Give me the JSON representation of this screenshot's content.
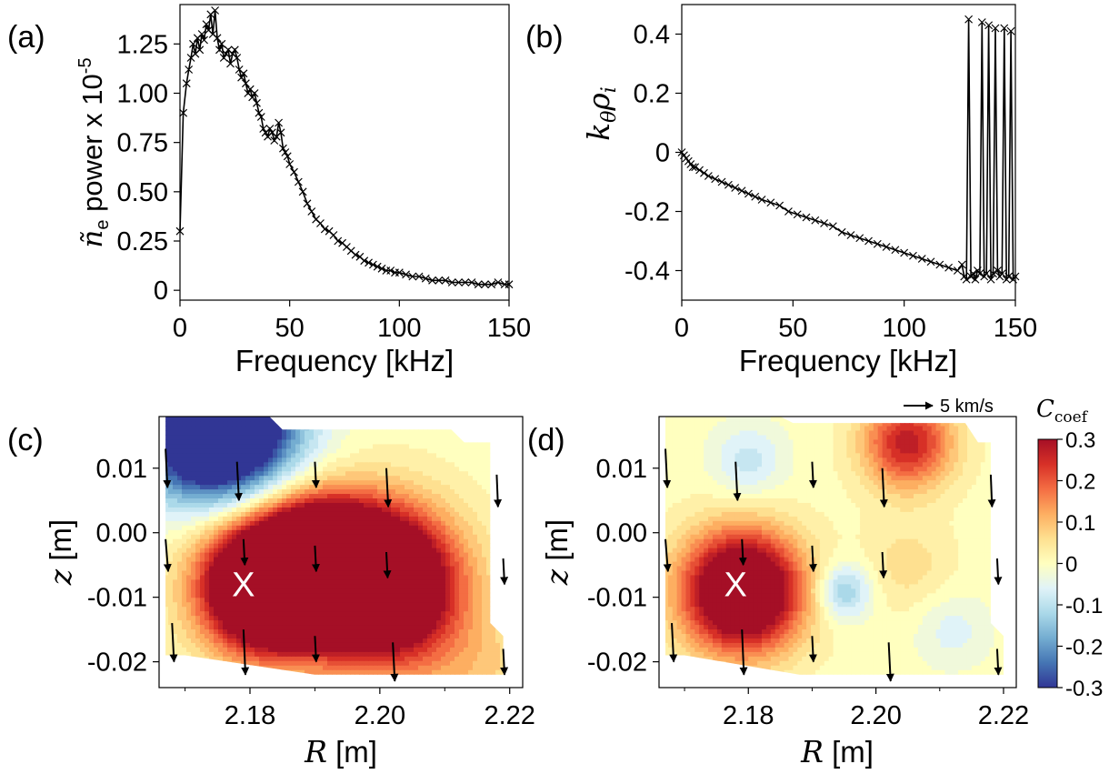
{
  "panels": {
    "a": {
      "label": "(a)"
    },
    "b": {
      "label": "(b)"
    },
    "c": {
      "label": "(c)"
    },
    "d": {
      "label": "(d)"
    }
  },
  "annotations": {
    "arrow_scale_label": "5 km/s",
    "x_marker": "X",
    "colorbar_label": "C",
    "colorbar_label_sub": "coef"
  },
  "chart_data": [
    {
      "id": "a",
      "type": "line",
      "title": "",
      "xlabel": "Frequency [kHz]",
      "ylabel_parts": [
        "ñ",
        "e",
        " power x 10",
        "-5"
      ],
      "xlim": [
        0,
        150
      ],
      "ylim": [
        -0.05,
        1.45
      ],
      "xticks": [
        0,
        50,
        100,
        150
      ],
      "yticks": [
        0,
        0.25,
        0.5,
        0.75,
        1.0,
        1.25
      ],
      "ytick_labels": [
        "0",
        "0.25",
        "0.50",
        "0.75",
        "1.00",
        "1.25"
      ],
      "marker": "x",
      "x": [
        0,
        1.5,
        3,
        4,
        5,
        6,
        7,
        8,
        9,
        10,
        11,
        12,
        13,
        14,
        15,
        16,
        17,
        18,
        19,
        20,
        21,
        22,
        23,
        24,
        25,
        26,
        27,
        28,
        29,
        30,
        31,
        32,
        33,
        34,
        35,
        36,
        37,
        38,
        39,
        40,
        41,
        42,
        43,
        44,
        45,
        46,
        47,
        48,
        49,
        50,
        52,
        54,
        56,
        58,
        60,
        62,
        64,
        66,
        68,
        70,
        72,
        74,
        76,
        78,
        80,
        82,
        84,
        86,
        88,
        90,
        92,
        94,
        96,
        98,
        100,
        103,
        106,
        109,
        112,
        115,
        118,
        121,
        124,
        127,
        130,
        133,
        136,
        139,
        142,
        145,
        148,
        150
      ],
      "y": [
        0.3,
        0.9,
        1.05,
        1.12,
        1.18,
        1.25,
        1.2,
        1.28,
        1.22,
        1.3,
        1.27,
        1.35,
        1.32,
        1.4,
        1.3,
        1.42,
        1.28,
        1.22,
        1.25,
        1.18,
        1.2,
        1.22,
        1.15,
        1.2,
        1.22,
        1.18,
        1.12,
        1.08,
        1.1,
        1.05,
        1.0,
        1.02,
        0.98,
        1.0,
        0.95,
        0.9,
        0.88,
        0.82,
        0.8,
        0.78,
        0.82,
        0.8,
        0.76,
        0.78,
        0.85,
        0.8,
        0.72,
        0.7,
        0.68,
        0.64,
        0.6,
        0.55,
        0.5,
        0.44,
        0.4,
        0.36,
        0.34,
        0.31,
        0.3,
        0.28,
        0.25,
        0.24,
        0.22,
        0.2,
        0.18,
        0.17,
        0.15,
        0.14,
        0.13,
        0.12,
        0.11,
        0.1,
        0.1,
        0.09,
        0.09,
        0.08,
        0.07,
        0.07,
        0.06,
        0.05,
        0.05,
        0.05,
        0.04,
        0.04,
        0.04,
        0.04,
        0.03,
        0.03,
        0.03,
        0.04,
        0.03,
        0.03
      ]
    },
    {
      "id": "b",
      "type": "line",
      "title": "",
      "xlabel": "Frequency [kHz]",
      "ylabel": "kθρi",
      "ylabel_parts": [
        "k",
        "θ",
        "ρ",
        "i"
      ],
      "xlim": [
        0,
        150
      ],
      "ylim": [
        -0.5,
        0.5
      ],
      "xticks": [
        0,
        50,
        100,
        150
      ],
      "yticks": [
        -0.4,
        -0.2,
        0,
        0.2,
        0.4
      ],
      "ytick_labels": [
        "-0.4",
        "-0.2",
        "0",
        "0.2",
        "0.4"
      ],
      "marker": "x",
      "x": [
        0,
        1,
        2,
        3,
        4,
        5,
        6,
        8,
        10,
        12,
        15,
        18,
        21,
        24,
        27,
        30,
        33,
        36,
        40,
        44,
        48,
        52,
        56,
        60,
        64,
        68,
        72,
        76,
        80,
        84,
        88,
        92,
        96,
        100,
        104,
        108,
        112,
        116,
        120,
        124,
        126,
        127,
        128,
        129,
        130,
        131,
        132,
        133,
        134,
        135,
        136,
        137,
        138,
        139,
        140,
        141,
        142,
        143,
        144,
        145,
        146,
        147,
        148,
        149,
        150
      ],
      "y": [
        0,
        -0.01,
        -0.02,
        -0.03,
        -0.04,
        -0.05,
        -0.05,
        -0.06,
        -0.07,
        -0.08,
        -0.09,
        -0.1,
        -0.11,
        -0.12,
        -0.13,
        -0.14,
        -0.15,
        -0.16,
        -0.17,
        -0.18,
        -0.2,
        -0.21,
        -0.22,
        -0.23,
        -0.24,
        -0.25,
        -0.27,
        -0.28,
        -0.29,
        -0.3,
        -0.31,
        -0.32,
        -0.33,
        -0.34,
        -0.35,
        -0.36,
        -0.37,
        -0.38,
        -0.39,
        -0.4,
        -0.38,
        -0.42,
        -0.43,
        0.45,
        -0.42,
        -0.41,
        -0.43,
        -0.4,
        -0.41,
        0.44,
        -0.42,
        -0.41,
        0.43,
        -0.43,
        -0.41,
        0.42,
        -0.4,
        -0.42,
        -0.41,
        0.42,
        -0.43,
        -0.42,
        0.41,
        -0.43,
        -0.42
      ]
    },
    {
      "id": "c",
      "type": "heatmap",
      "xlabel_var": "R",
      "xlabel_unit": " [m]",
      "ylabel_var": "z",
      "ylabel_unit": " [m]",
      "xlim": [
        2.166,
        2.222
      ],
      "ylim": [
        -0.024,
        0.018
      ],
      "xticks": [
        2.18,
        2.2,
        2.22
      ],
      "xtick_labels": [
        "2.18",
        "2.20",
        "2.22"
      ],
      "yticks": [
        0.01,
        0.0,
        -0.01,
        -0.02
      ],
      "ytick_labels": [
        "0.01",
        "0.00",
        "-0.01",
        "-0.02"
      ],
      "sources": [
        {
          "R": 2.183,
          "z": -0.008,
          "a": 1.0,
          "s": 0.007
        },
        {
          "R": 2.2,
          "z": -0.008,
          "a": 0.9,
          "s": 0.008
        },
        {
          "R": 2.191,
          "z": -0.003,
          "a": 0.5,
          "s": 0.006
        },
        {
          "R": 2.175,
          "z": 0.017,
          "a": -0.9,
          "s": 0.008
        },
        {
          "R": 2.215,
          "z": -0.022,
          "a": 0.1,
          "s": 0.007
        }
      ],
      "gain": 0.7,
      "clip": [
        [
          2.167,
          0.018
        ],
        [
          2.183,
          0.018
        ],
        [
          2.185,
          0.016
        ],
        [
          2.211,
          0.016
        ],
        [
          2.213,
          0.014
        ],
        [
          2.217,
          0.014
        ],
        [
          2.217,
          -0.014
        ],
        [
          2.219,
          -0.016
        ],
        [
          2.219,
          -0.022
        ],
        [
          2.19,
          -0.022
        ],
        [
          2.17,
          -0.019
        ],
        [
          2.167,
          -0.019
        ]
      ],
      "marker": {
        "R": 2.179,
        "z": -0.008
      },
      "arrows": [
        {
          "R": 2.167,
          "z": 0.013,
          "dR": 0.0003,
          "dz": -0.006
        },
        {
          "R": 2.178,
          "z": 0.011,
          "dR": 0.0003,
          "dz": -0.006
        },
        {
          "R": 2.19,
          "z": 0.011,
          "dR": 0.0002,
          "dz": -0.004
        },
        {
          "R": 2.201,
          "z": 0.01,
          "dR": 0.0003,
          "dz": -0.006
        },
        {
          "R": 2.218,
          "z": 0.009,
          "dR": 0.0002,
          "dz": -0.005
        },
        {
          "R": 2.167,
          "z": -0.001,
          "dR": 0.0004,
          "dz": -0.005
        },
        {
          "R": 2.179,
          "z": -0.001,
          "dR": 0.0002,
          "dz": -0.004
        },
        {
          "R": 2.19,
          "z": -0.002,
          "dR": 0.0002,
          "dz": -0.004
        },
        {
          "R": 2.201,
          "z": -0.003,
          "dR": 0.0002,
          "dz": -0.004
        },
        {
          "R": 2.219,
          "z": -0.004,
          "dR": 0.0002,
          "dz": -0.004
        },
        {
          "R": 2.168,
          "z": -0.014,
          "dR": 0.0003,
          "dz": -0.006
        },
        {
          "R": 2.179,
          "z": -0.015,
          "dR": 0.0003,
          "dz": -0.007
        },
        {
          "R": 2.19,
          "z": -0.016,
          "dR": 0.0002,
          "dz": -0.004
        },
        {
          "R": 2.202,
          "z": -0.017,
          "dR": 0.0003,
          "dz": -0.006
        },
        {
          "R": 2.219,
          "z": -0.018,
          "dR": 0.0002,
          "dz": -0.004
        }
      ]
    },
    {
      "id": "d",
      "type": "heatmap",
      "xlabel_var": "R",
      "xlabel_unit": " [m]",
      "ylabel_var": "z",
      "ylabel_unit": " [m]",
      "xlim": [
        2.166,
        2.222
      ],
      "ylim": [
        -0.024,
        0.018
      ],
      "xticks": [
        2.18,
        2.2,
        2.22
      ],
      "xtick_labels": [
        "2.18",
        "2.20",
        "2.22"
      ],
      "yticks": [
        0.01,
        0.0,
        -0.01,
        -0.02
      ],
      "ytick_labels": [
        "0.01",
        "0.00",
        "-0.01",
        "-0.02"
      ],
      "sources": [
        {
          "R": 2.179,
          "z": -0.009,
          "a": 1.0,
          "s": 0.0065
        },
        {
          "R": 2.205,
          "z": 0.014,
          "a": 0.55,
          "s": 0.005
        },
        {
          "R": 2.195,
          "z": -0.009,
          "a": -0.3,
          "s": 0.003
        },
        {
          "R": 2.18,
          "z": 0.011,
          "a": -0.18,
          "s": 0.004
        },
        {
          "R": 2.212,
          "z": -0.015,
          "a": -0.12,
          "s": 0.004
        },
        {
          "R": 2.205,
          "z": -0.005,
          "a": 0.12,
          "s": 0.005
        }
      ],
      "gain": 0.5,
      "clip": [
        [
          2.167,
          0.018
        ],
        [
          2.185,
          0.018
        ],
        [
          2.187,
          0.017
        ],
        [
          2.214,
          0.017
        ],
        [
          2.216,
          0.014
        ],
        [
          2.218,
          0.014
        ],
        [
          2.218,
          -0.014
        ],
        [
          2.22,
          -0.016
        ],
        [
          2.22,
          -0.022
        ],
        [
          2.188,
          -0.022
        ],
        [
          2.17,
          -0.019
        ],
        [
          2.167,
          -0.019
        ]
      ],
      "marker": {
        "R": 2.178,
        "z": -0.008
      },
      "arrows": [
        {
          "R": 2.167,
          "z": 0.013,
          "dR": 0.0003,
          "dz": -0.006
        },
        {
          "R": 2.178,
          "z": 0.011,
          "dR": 0.0003,
          "dz": -0.006
        },
        {
          "R": 2.19,
          "z": 0.011,
          "dR": 0.0002,
          "dz": -0.004
        },
        {
          "R": 2.201,
          "z": 0.01,
          "dR": 0.0003,
          "dz": -0.006
        },
        {
          "R": 2.218,
          "z": 0.009,
          "dR": 0.0002,
          "dz": -0.005
        },
        {
          "R": 2.167,
          "z": -0.001,
          "dR": 0.0004,
          "dz": -0.005
        },
        {
          "R": 2.179,
          "z": -0.001,
          "dR": 0.0002,
          "dz": -0.004
        },
        {
          "R": 2.19,
          "z": -0.002,
          "dR": 0.0002,
          "dz": -0.004
        },
        {
          "R": 2.201,
          "z": -0.003,
          "dR": 0.0002,
          "dz": -0.004
        },
        {
          "R": 2.219,
          "z": -0.004,
          "dR": 0.0002,
          "dz": -0.004
        },
        {
          "R": 2.168,
          "z": -0.014,
          "dR": 0.0003,
          "dz": -0.006
        },
        {
          "R": 2.179,
          "z": -0.015,
          "dR": 0.0003,
          "dz": -0.007
        },
        {
          "R": 2.19,
          "z": -0.016,
          "dR": 0.0002,
          "dz": -0.004
        },
        {
          "R": 2.202,
          "z": -0.017,
          "dR": 0.0003,
          "dz": -0.006
        },
        {
          "R": 2.219,
          "z": -0.018,
          "dR": 0.0002,
          "dz": -0.004
        }
      ]
    }
  ],
  "colorbar": {
    "vmin": -0.3,
    "vmax": 0.3,
    "ticks": [
      0.3,
      0.2,
      0.1,
      0,
      -0.1,
      -0.2,
      -0.3
    ],
    "tick_labels": [
      "0.3",
      "0.2",
      "0.1",
      "0",
      "-0.1",
      "-0.2",
      "-0.3"
    ],
    "colors": [
      "#313695",
      "#4575b4",
      "#74add1",
      "#abd9e9",
      "#e0f3f8",
      "#ffffbf",
      "#fee090",
      "#fdae61",
      "#f46d43",
      "#d73027",
      "#a50f26"
    ]
  }
}
